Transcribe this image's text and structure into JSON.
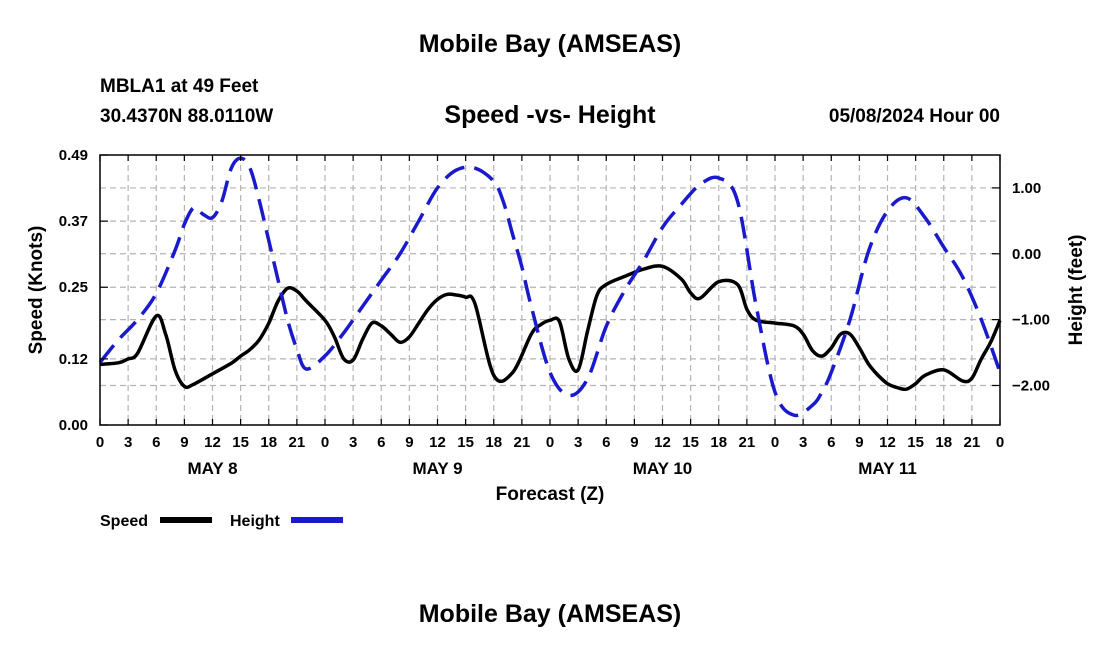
{
  "header": {
    "title": "Mobile Bay (AMSEAS)",
    "station": "MBLA1 at 49 Feet",
    "coords": "30.4370N  88.0110W",
    "subtitle": "Speed -vs- Height",
    "datetime": "05/08/2024 Hour 00"
  },
  "footer": {
    "title": "Mobile Bay (AMSEAS)"
  },
  "chart_data": {
    "type": "line",
    "title": "Speed -vs- Height",
    "xlabel": "Forecast (Z)",
    "ylabel": "Speed (Knots)",
    "y2label": "Height (feet)",
    "xlim": [
      0,
      96
    ],
    "ylim": [
      0,
      0.49
    ],
    "y2lim": [
      -2.6,
      1.5
    ],
    "x_tick_step": 3,
    "x_tick_labels": [
      "0",
      "3",
      "6",
      "9",
      "12",
      "15",
      "18",
      "21",
      "0",
      "3",
      "6",
      "9",
      "12",
      "15",
      "18",
      "21",
      "0",
      "3",
      "6",
      "9",
      "12",
      "15",
      "18",
      "21",
      "0",
      "3",
      "6",
      "9",
      "12",
      "15",
      "18",
      "21",
      "0"
    ],
    "y_ticks": [
      0,
      0.12,
      0.25,
      0.37,
      0.49
    ],
    "y_tick_labels": [
      "0.00",
      "0.12",
      "0.25",
      "0.37",
      "0.49"
    ],
    "y2_ticks": [
      1,
      0,
      -1,
      -2
    ],
    "y2_tick_labels": [
      "1.00",
      "0.00",
      "−1.00",
      "−2.00"
    ],
    "day_labels": [
      {
        "label": "MAY 8",
        "x": 12
      },
      {
        "label": "MAY 9",
        "x": 36
      },
      {
        "label": "MAY 10",
        "x": 60
      },
      {
        "label": "MAY 11",
        "x": 84
      }
    ],
    "grid": true,
    "series": [
      {
        "name": "Speed",
        "axis": "left",
        "color": "#000000",
        "dash": "solid",
        "x": [
          0,
          2,
          3,
          4,
          6,
          7,
          8,
          9,
          10,
          12,
          14,
          15,
          16,
          17,
          18,
          19,
          20,
          21,
          22,
          24,
          25,
          26,
          27,
          28,
          29,
          30,
          31,
          32,
          33,
          34,
          35,
          36,
          37,
          38,
          39,
          40,
          42,
          44,
          46,
          47,
          48,
          49,
          50,
          51,
          52,
          53,
          54,
          56,
          58,
          60,
          62,
          63,
          64,
          66,
          68,
          69,
          70,
          72,
          74,
          75,
          76,
          77,
          78,
          79,
          80,
          81,
          82,
          83,
          84,
          85,
          86,
          87,
          88,
          90,
          92,
          93,
          94,
          95,
          96
        ],
        "values": [
          0.11,
          0.113,
          0.12,
          0.13,
          0.198,
          0.165,
          0.1,
          0.07,
          0.074,
          0.093,
          0.112,
          0.125,
          0.137,
          0.155,
          0.185,
          0.225,
          0.248,
          0.243,
          0.225,
          0.19,
          0.16,
          0.12,
          0.118,
          0.155,
          0.185,
          0.18,
          0.165,
          0.15,
          0.16,
          0.185,
          0.21,
          0.228,
          0.237,
          0.236,
          0.232,
          0.22,
          0.09,
          0.095,
          0.165,
          0.182,
          0.19,
          0.188,
          0.12,
          0.1,
          0.17,
          0.235,
          0.255,
          0.27,
          0.283,
          0.288,
          0.265,
          0.24,
          0.23,
          0.26,
          0.255,
          0.21,
          0.19,
          0.185,
          0.18,
          0.165,
          0.135,
          0.125,
          0.14,
          0.165,
          0.165,
          0.14,
          0.11,
          0.09,
          0.075,
          0.068,
          0.065,
          0.075,
          0.09,
          0.1,
          0.08,
          0.085,
          0.12,
          0.15,
          0.19
        ]
      },
      {
        "name": "Height",
        "axis": "right",
        "color": "#1a1acc",
        "dash": "dashed",
        "x": [
          0,
          2,
          4,
          6,
          8,
          9,
          10,
          11,
          12,
          13,
          14,
          15,
          16,
          17,
          18,
          19,
          20,
          21,
          22,
          24,
          26,
          28,
          30,
          32,
          34,
          36,
          38,
          40,
          42,
          43,
          44,
          45,
          46,
          48,
          50,
          52,
          54,
          56,
          58,
          60,
          62,
          64,
          66,
          68,
          70,
          72,
          74,
          76,
          77,
          78,
          80,
          82,
          84,
          86,
          88,
          90,
          92,
          94,
          96
        ],
        "values": [
          -1.65,
          -1.3,
          -1.0,
          -0.6,
          0.05,
          0.45,
          0.7,
          0.6,
          0.55,
          0.8,
          1.3,
          1.45,
          1.3,
          0.8,
          0.2,
          -0.4,
          -1.0,
          -1.45,
          -1.75,
          -1.55,
          -1.2,
          -0.8,
          -0.4,
          0.0,
          0.5,
          1.0,
          1.27,
          1.3,
          1.1,
          0.8,
          0.3,
          -0.2,
          -0.8,
          -1.8,
          -2.15,
          -1.9,
          -1.1,
          -0.55,
          -0.1,
          0.4,
          0.75,
          1.05,
          1.15,
          0.8,
          -0.8,
          -2.1,
          -2.45,
          -2.3,
          -2.1,
          -1.8,
          -1.0,
          0.05,
          0.65,
          0.85,
          0.55,
          0.1,
          -0.35,
          -1.0,
          -1.8
        ]
      }
    ]
  },
  "legend": {
    "speed_label": "Speed",
    "height_label": "Height"
  }
}
